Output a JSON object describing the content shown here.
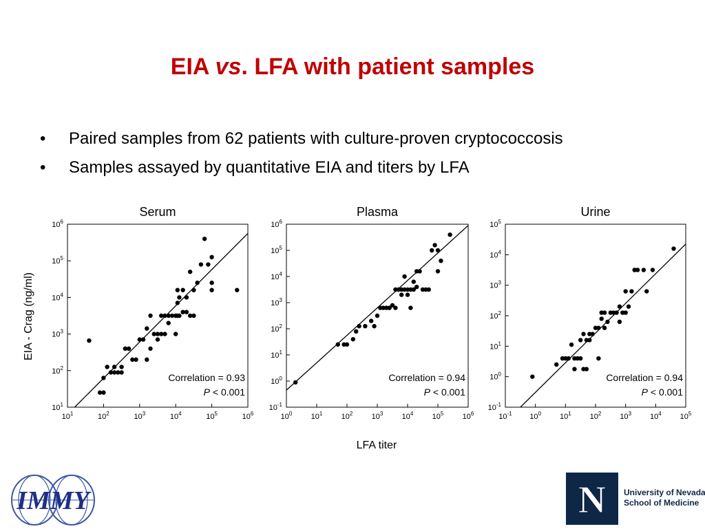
{
  "slide": {
    "title_prefix": "EIA ",
    "title_italic": "vs",
    "title_suffix": ". LFA with patient samples",
    "bullet_symbol": "•",
    "bullets": [
      "Paired samples from 62 patients with culture-proven cryptococcosis",
      "Samples assayed by quantitative EIA and titers by LFA"
    ],
    "ylabel": "EIA - Crag (ng/ml)",
    "xlabel": "LFA titer"
  },
  "logos": {
    "immy": "IMMY",
    "unr_line1": "University of Nevada",
    "unr_line2": "School of Medicine",
    "unr_mark": "N"
  },
  "chart_data": [
    {
      "type": "scatter",
      "title": "Serum",
      "xlabel": "LFA titer",
      "ylabel": "EIA - Crag (ng/ml)",
      "x_scale": "log",
      "y_scale": "log",
      "xlim_exp": [
        1,
        6
      ],
      "ylim_exp": [
        1,
        6
      ],
      "x_ticks": [
        "10^1",
        "10^2",
        "10^3",
        "10^4",
        "10^5",
        "10^6"
      ],
      "y_ticks": [
        "10^1",
        "10^2",
        "10^3",
        "10^4",
        "10^5",
        "10^6"
      ],
      "annotation": "Correlation = 0.93",
      "p_label": "P",
      "p_value": " < 0.001",
      "fit_line_exp": [
        [
          1.2,
          1.0
        ],
        [
          6.0,
          5.75
        ]
      ],
      "points_exp": [
        [
          1.6,
          2.82
        ],
        [
          1.9,
          1.4
        ],
        [
          2.0,
          1.4
        ],
        [
          2.0,
          1.8
        ],
        [
          2.1,
          2.1
        ],
        [
          2.2,
          1.95
        ],
        [
          2.3,
          1.95
        ],
        [
          2.3,
          2.1
        ],
        [
          2.4,
          1.95
        ],
        [
          2.5,
          2.1
        ],
        [
          2.6,
          2.6
        ],
        [
          2.7,
          2.6
        ],
        [
          2.8,
          2.3
        ],
        [
          2.9,
          2.3
        ],
        [
          3.0,
          2.85
        ],
        [
          3.1,
          2.85
        ],
        [
          3.2,
          3.15
        ],
        [
          3.3,
          2.6
        ],
        [
          3.3,
          3.5
        ],
        [
          3.4,
          3.0
        ],
        [
          3.5,
          2.85
        ],
        [
          3.5,
          3.0
        ],
        [
          3.6,
          3.0
        ],
        [
          3.6,
          3.5
        ],
        [
          3.7,
          3.0
        ],
        [
          3.7,
          3.5
        ],
        [
          3.8,
          3.3
        ],
        [
          3.8,
          3.5
        ],
        [
          3.9,
          3.5
        ],
        [
          4.0,
          3.5
        ],
        [
          4.0,
          3.0
        ],
        [
          4.05,
          3.85
        ],
        [
          4.05,
          4.2
        ],
        [
          4.05,
          3.5
        ],
        [
          4.1,
          3.5
        ],
        [
          4.1,
          4.0
        ],
        [
          4.2,
          3.6
        ],
        [
          4.2,
          4.2
        ],
        [
          4.3,
          3.6
        ],
        [
          4.3,
          4.0
        ],
        [
          4.4,
          3.5
        ],
        [
          4.4,
          4.7
        ],
        [
          4.5,
          3.5
        ],
        [
          4.5,
          4.2
        ],
        [
          4.6,
          4.4
        ],
        [
          4.7,
          4.9
        ],
        [
          4.8,
          5.6
        ],
        [
          4.9,
          4.9
        ],
        [
          5.0,
          5.1
        ],
        [
          5.0,
          4.2
        ],
        [
          5.0,
          4.4
        ],
        [
          5.7,
          4.2
        ],
        [
          3.2,
          2.3
        ],
        [
          2.5,
          1.95
        ]
      ]
    },
    {
      "type": "scatter",
      "title": "Plasma",
      "xlabel": "LFA titer",
      "ylabel": "",
      "x_scale": "log",
      "y_scale": "log",
      "xlim_exp": [
        0,
        6
      ],
      "ylim_exp": [
        -1,
        6
      ],
      "x_ticks": [
        "10^0",
        "10^1",
        "10^2",
        "10^3",
        "10^4",
        "10^5",
        "10^6"
      ],
      "y_ticks": [
        "10^-1",
        "10^0",
        "10^1",
        "10^2",
        "10^3",
        "10^4",
        "10^5",
        "10^6"
      ],
      "annotation": "Correlation = 0.94",
      "p_label": "P",
      "p_value": " < 0.001",
      "fit_line_exp": [
        [
          0.0,
          -0.35
        ],
        [
          6.0,
          5.95
        ]
      ],
      "points_exp": [
        [
          0.3,
          -0.05
        ],
        [
          1.7,
          1.4
        ],
        [
          1.9,
          1.4
        ],
        [
          2.0,
          1.4
        ],
        [
          2.2,
          1.6
        ],
        [
          2.3,
          1.9
        ],
        [
          2.4,
          2.1
        ],
        [
          2.6,
          2.1
        ],
        [
          2.8,
          2.3
        ],
        [
          2.9,
          2.1
        ],
        [
          3.0,
          2.5
        ],
        [
          3.1,
          2.8
        ],
        [
          3.2,
          2.8
        ],
        [
          3.3,
          2.8
        ],
        [
          3.4,
          2.8
        ],
        [
          3.5,
          2.9
        ],
        [
          3.6,
          2.8
        ],
        [
          3.6,
          3.5
        ],
        [
          3.7,
          3.5
        ],
        [
          3.8,
          3.3
        ],
        [
          3.8,
          3.5
        ],
        [
          3.9,
          3.5
        ],
        [
          4.0,
          3.5
        ],
        [
          4.0,
          3.3
        ],
        [
          4.1,
          3.5
        ],
        [
          4.1,
          2.8
        ],
        [
          4.2,
          3.5
        ],
        [
          4.2,
          3.8
        ],
        [
          4.3,
          3.6
        ],
        [
          4.3,
          4.2
        ],
        [
          4.4,
          4.2
        ],
        [
          4.5,
          3.5
        ],
        [
          4.6,
          3.5
        ],
        [
          4.7,
          3.5
        ],
        [
          4.8,
          5.0
        ],
        [
          4.9,
          5.2
        ],
        [
          5.0,
          5.0
        ],
        [
          5.0,
          4.2
        ],
        [
          5.1,
          4.6
        ],
        [
          5.4,
          5.6
        ],
        [
          3.9,
          4.0
        ],
        [
          3.4,
          2.8
        ]
      ]
    },
    {
      "type": "scatter",
      "title": "Urine",
      "xlabel": "LFA titer",
      "ylabel": "",
      "x_scale": "log",
      "y_scale": "log",
      "xlim_exp": [
        -1,
        5
      ],
      "ylim_exp": [
        -1,
        5
      ],
      "x_ticks": [
        "10^-1",
        "10^0",
        "10^1",
        "10^2",
        "10^3",
        "10^4",
        "10^5"
      ],
      "y_ticks": [
        "10^-1",
        "10^0",
        "10^1",
        "10^2",
        "10^3",
        "10^4",
        "10^5"
      ],
      "annotation": "Correlation = 0.94",
      "p_label": "P",
      "p_value": " < 0.001",
      "fit_line_exp": [
        [
          -0.5,
          -1.0
        ],
        [
          5.0,
          4.35
        ]
      ],
      "points_exp": [
        [
          -0.1,
          0.0
        ],
        [
          0.7,
          0.4
        ],
        [
          0.9,
          0.6
        ],
        [
          1.0,
          0.6
        ],
        [
          1.1,
          0.6
        ],
        [
          1.2,
          1.05
        ],
        [
          1.3,
          0.6
        ],
        [
          1.3,
          0.25
        ],
        [
          1.4,
          0.6
        ],
        [
          1.5,
          0.6
        ],
        [
          1.5,
          1.2
        ],
        [
          1.6,
          1.4
        ],
        [
          1.6,
          0.25
        ],
        [
          1.7,
          1.2
        ],
        [
          1.8,
          1.2
        ],
        [
          1.8,
          1.4
        ],
        [
          1.9,
          1.4
        ],
        [
          2.0,
          1.6
        ],
        [
          2.1,
          1.6
        ],
        [
          2.2,
          1.9
        ],
        [
          2.2,
          2.1
        ],
        [
          2.3,
          1.6
        ],
        [
          2.3,
          2.1
        ],
        [
          2.4,
          1.8
        ],
        [
          2.5,
          2.1
        ],
        [
          2.6,
          2.1
        ],
        [
          2.7,
          2.1
        ],
        [
          2.8,
          2.3
        ],
        [
          2.8,
          1.8
        ],
        [
          2.9,
          2.1
        ],
        [
          3.0,
          2.1
        ],
        [
          3.0,
          2.8
        ],
        [
          3.1,
          2.3
        ],
        [
          3.2,
          2.8
        ],
        [
          3.3,
          3.5
        ],
        [
          3.3,
          3.5
        ],
        [
          3.4,
          3.5
        ],
        [
          3.6,
          3.5
        ],
        [
          3.7,
          2.8
        ],
        [
          3.9,
          3.5
        ],
        [
          4.6,
          4.2
        ],
        [
          2.1,
          0.6
        ],
        [
          1.7,
          0.25
        ]
      ]
    }
  ]
}
